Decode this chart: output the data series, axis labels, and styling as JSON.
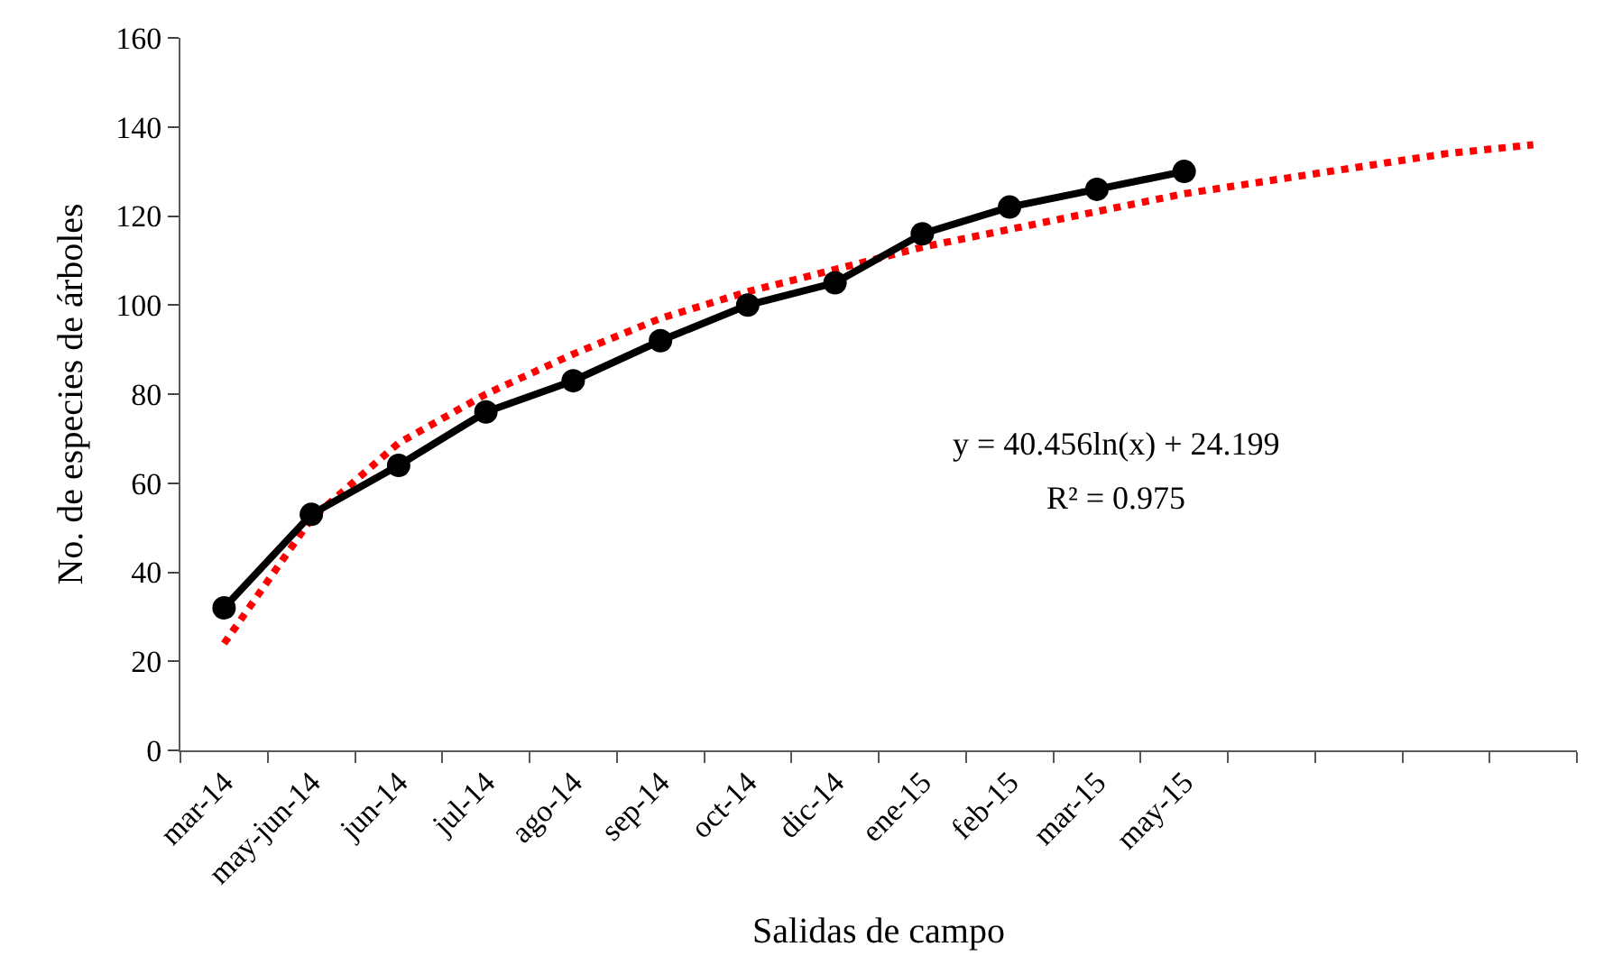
{
  "chart_data": {
    "type": "line",
    "xlabel": "Salidas de campo",
    "ylabel": "No. de especies de árboles",
    "categories": [
      "mar-14",
      "may-jun-14",
      "jun-14",
      "jul-14",
      "ago-14",
      "sep-14",
      "oct-14",
      "dic-14",
      "ene-15",
      "feb-15",
      "mar-15",
      "may-15",
      null,
      null,
      null,
      null
    ],
    "series": [
      {
        "line_style": "dotted",
        "marker": "none",
        "color": "#ff0000",
        "values": [
          24,
          52,
          69,
          80,
          89,
          97,
          103,
          108,
          113,
          117,
          121,
          125,
          128,
          131,
          134,
          136
        ]
      },
      {
        "line_style": "solid",
        "marker": "circle",
        "color": "#000000",
        "values": [
          32,
          53,
          64,
          76,
          83,
          92,
          100,
          105,
          116,
          122,
          126,
          130,
          null,
          null,
          null,
          null
        ]
      }
    ],
    "ylim": [
      0,
      160
    ],
    "yticks": [
      0,
      20,
      40,
      60,
      80,
      100,
      120,
      140,
      160
    ],
    "annotations": [
      "y = 40.456ln(x) + 24.199",
      "R² = 0.975"
    ]
  }
}
